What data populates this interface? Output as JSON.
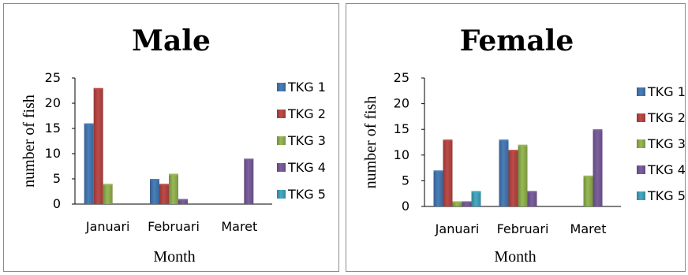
{
  "chart_data": [
    {
      "type": "bar",
      "title": "Male",
      "xlabel": "Month",
      "ylabel": "number of fish",
      "ylim": [
        0,
        25
      ],
      "yticks": [
        "0",
        "5",
        "10",
        "15",
        "20",
        "25"
      ],
      "categories": [
        "Januari",
        "Februari",
        "Maret"
      ],
      "series": [
        {
          "name": "TKG 1",
          "color": "#4a7ebb",
          "values": [
            16,
            5,
            0
          ]
        },
        {
          "name": "TKG 2",
          "color": "#be4b48",
          "values": [
            23,
            4,
            0
          ]
        },
        {
          "name": "TKG 3",
          "color": "#98b954",
          "values": [
            4,
            6,
            0
          ]
        },
        {
          "name": "TKG 4",
          "color": "#7d60a0",
          "values": [
            0,
            1,
            9
          ]
        },
        {
          "name": "TKG 5",
          "color": "#46aac5",
          "values": [
            0,
            0,
            0
          ]
        }
      ],
      "legend": "right",
      "grid": false
    },
    {
      "type": "bar",
      "title": "Female",
      "xlabel": "Month",
      "ylabel": "number of fish",
      "ylim": [
        0,
        25
      ],
      "yticks": [
        "0",
        "5",
        "10",
        "15",
        "20",
        "25"
      ],
      "categories": [
        "Januari",
        "Februari",
        "Maret"
      ],
      "series": [
        {
          "name": "TKG 1",
          "color": "#4a7ebb",
          "values": [
            7,
            13,
            0
          ]
        },
        {
          "name": "TKG 2",
          "color": "#be4b48",
          "values": [
            13,
            11,
            0
          ]
        },
        {
          "name": "TKG 3",
          "color": "#98b954",
          "values": [
            1,
            12,
            6
          ]
        },
        {
          "name": "TKG 4",
          "color": "#7d60a0",
          "values": [
            1,
            3,
            15
          ]
        },
        {
          "name": "TKG 5",
          "color": "#46aac5",
          "values": [
            3,
            0,
            0
          ]
        }
      ],
      "legend": "right",
      "grid": false
    }
  ]
}
